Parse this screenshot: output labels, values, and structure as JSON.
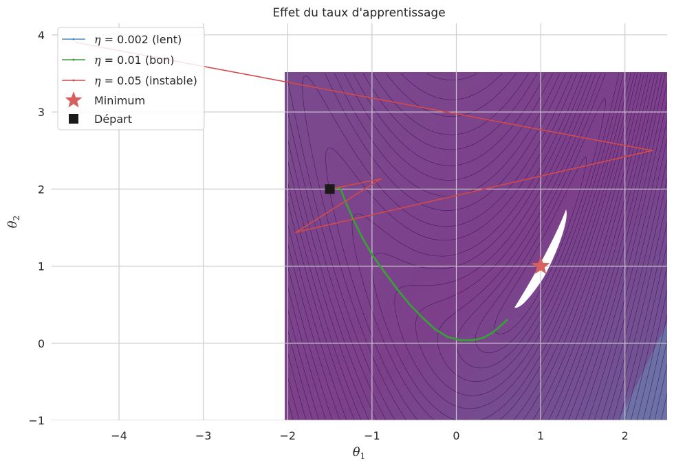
{
  "chart_data": {
    "type": "line",
    "title": "Effet du taux d'apprentissage",
    "xlabel": "θ1",
    "ylabel": "θ2",
    "xlim": [
      -4.8,
      2.5
    ],
    "ylim": [
      -1,
      4.15
    ],
    "x_ticks": [
      -4,
      -3,
      -2,
      -1,
      0,
      1,
      2
    ],
    "y_ticks": [
      -1,
      0,
      1,
      2,
      3,
      4
    ],
    "x_tick_labels": [
      "−4",
      "−3",
      "−2",
      "−1",
      "0",
      "1",
      "2"
    ],
    "y_tick_labels": [
      "−1",
      "0",
      "1",
      "2",
      "3",
      "4"
    ],
    "grid": true,
    "legend_position": "top-left",
    "contour_region": {
      "x": [
        -2,
        2.5
      ],
      "y": [
        -1,
        3.5
      ]
    },
    "series": [
      {
        "name": "η = 0.002 (lent)",
        "legend_eta": "η",
        "legend_rest": " = 0.002 (lent)",
        "color": "#4c8cbf",
        "x": [
          -1.5
        ],
        "y": [
          2.0
        ]
      },
      {
        "name": "η = 0.01 (bon)",
        "legend_eta": "η",
        "legend_rest": " = 0.01 (bon)",
        "color": "#3a9e3a",
        "x": [
          -1.5,
          -1.38,
          -1.3,
          -1.22,
          -1.12,
          -1.0,
          -0.85,
          -0.7,
          -0.55,
          -0.4,
          -0.25,
          -0.1,
          0.05,
          0.2,
          0.32,
          0.42,
          0.5,
          0.56,
          0.6
        ],
        "y": [
          2.0,
          2.02,
          1.8,
          1.6,
          1.38,
          1.15,
          0.92,
          0.7,
          0.5,
          0.33,
          0.18,
          0.08,
          0.04,
          0.04,
          0.07,
          0.13,
          0.2,
          0.26,
          0.3
        ]
      },
      {
        "name": "η = 0.05 (instable)",
        "legend_eta": "η",
        "legend_rest": " = 0.05 (instable)",
        "color": "#d24a4a",
        "x": [
          -1.5,
          -0.9,
          -1.9,
          2.32,
          -4.5
        ],
        "y": [
          2.0,
          2.13,
          1.44,
          2.5,
          3.9
        ]
      }
    ],
    "markers": [
      {
        "name": "Minimum",
        "shape": "star",
        "color": "#d65f5f",
        "x": 1.0,
        "y": 1.0
      },
      {
        "name": "Départ",
        "shape": "square",
        "color": "#1a1a1a",
        "x": -1.5,
        "y": 2.0
      }
    ]
  }
}
